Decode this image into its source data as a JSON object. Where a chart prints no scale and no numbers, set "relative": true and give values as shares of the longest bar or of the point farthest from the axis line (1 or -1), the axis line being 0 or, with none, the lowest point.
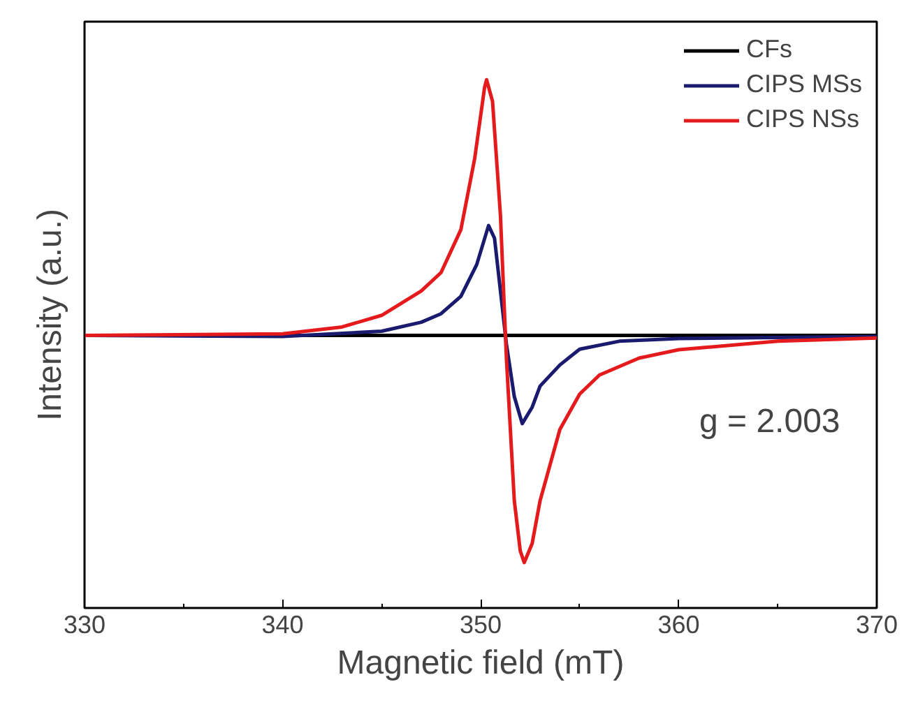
{
  "chart_data": {
    "type": "line",
    "relative": true,
    "xlabel": "Magnetic field (mT)",
    "ylabel": "Intensity (a.u.)",
    "xlim": [
      330,
      370
    ],
    "xticks": [
      330,
      340,
      350,
      360,
      370
    ],
    "grid": false,
    "legend": "top right",
    "marker": "none",
    "line_style": "solid",
    "annotations": [
      "g = 2.003"
    ],
    "series": [
      {
        "name": "CFs",
        "color": "#000000",
        "x": [
          330,
          340,
          350,
          351,
          352,
          360,
          370
        ],
        "values": [
          0.516,
          0.516,
          0.516,
          0.516,
          0.516,
          0.516,
          0.516
        ]
      },
      {
        "name": "CIPS MSs",
        "color": "#1a1a6e",
        "x": [
          330,
          340,
          345,
          347,
          348,
          349,
          349.8,
          350.4,
          350.7,
          351,
          351.3,
          351.7,
          352.1,
          352.6,
          353,
          354,
          355,
          357,
          360,
          370
        ],
        "values": [
          0.516,
          0.514,
          0.524,
          0.541,
          0.557,
          0.59,
          0.65,
          0.724,
          0.7,
          0.6,
          0.5,
          0.4,
          0.349,
          0.38,
          0.42,
          0.46,
          0.49,
          0.505,
          0.51,
          0.514
        ]
      },
      {
        "name": "CIPS NSs",
        "color": "#e41a1c",
        "x": [
          330,
          340,
          343,
          345,
          347,
          348,
          349,
          349.7,
          350.2,
          350.3,
          350.6,
          351,
          351.3,
          351.7,
          352.0,
          352.2,
          352.6,
          353,
          354,
          355,
          356,
          358,
          360,
          365,
          370
        ],
        "values": [
          0.516,
          0.519,
          0.532,
          0.554,
          0.6,
          0.635,
          0.716,
          0.851,
          0.986,
          1,
          0.959,
          0.743,
          0.473,
          0.203,
          0.108,
          0.086,
          0.122,
          0.203,
          0.338,
          0.405,
          0.441,
          0.473,
          0.489,
          0.505,
          0.511
        ]
      }
    ]
  }
}
